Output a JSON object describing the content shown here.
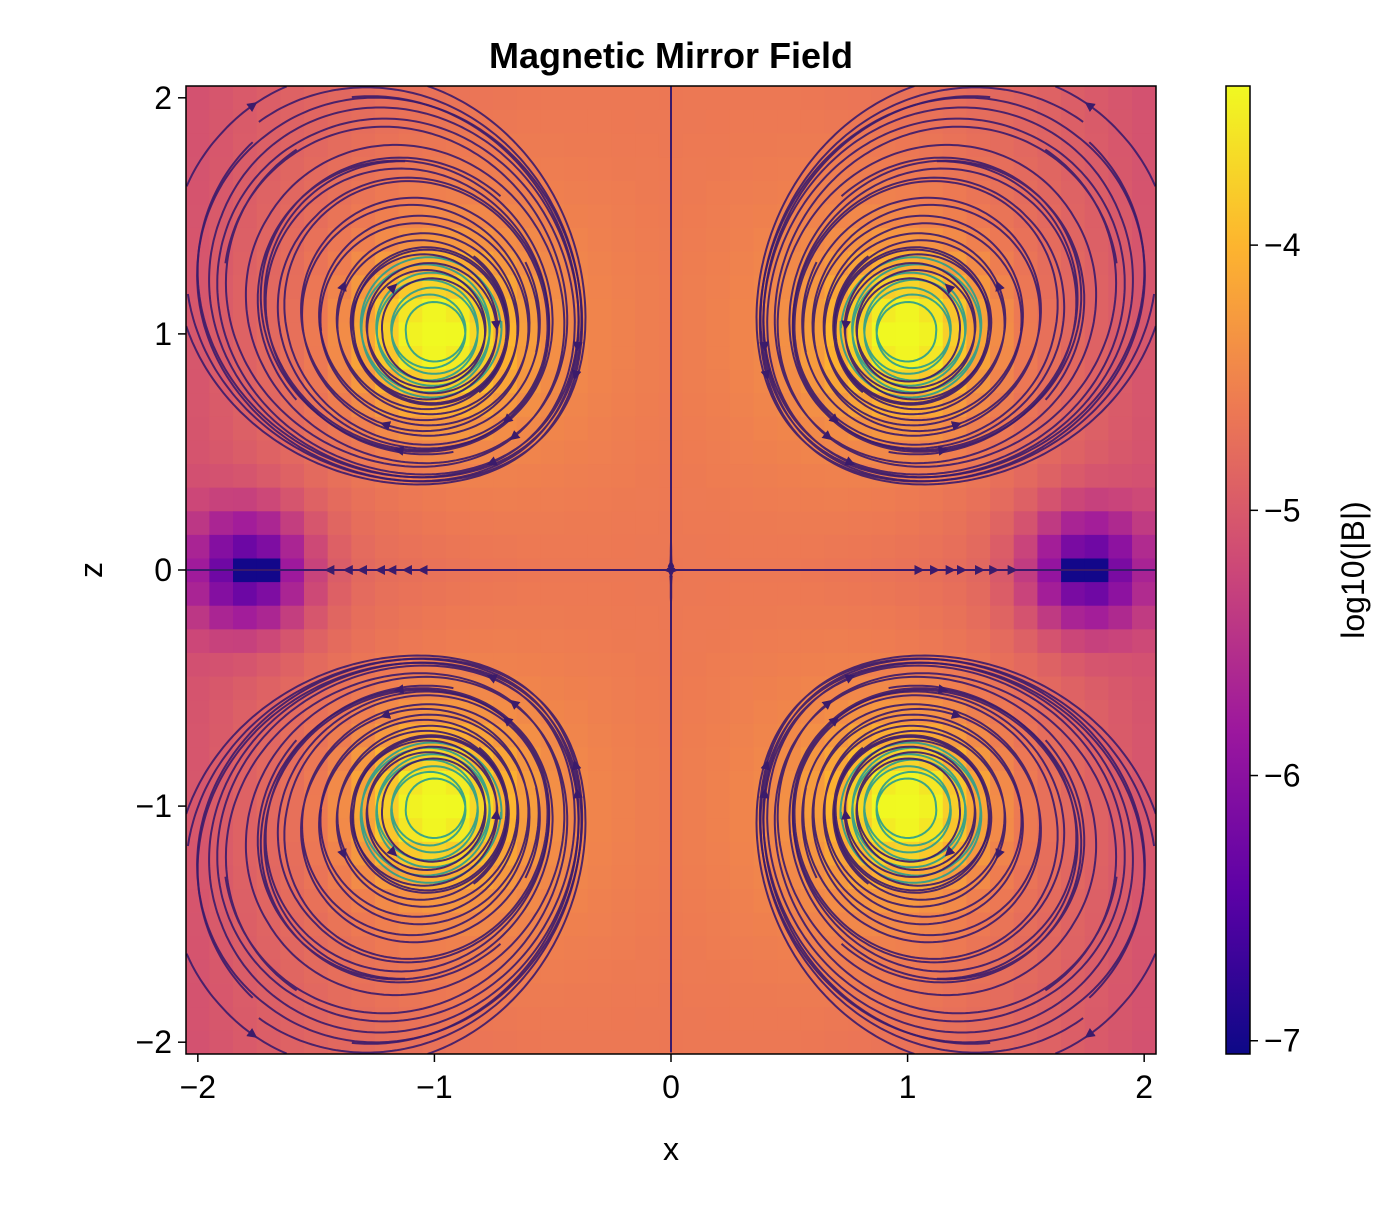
{
  "chart_data": {
    "type": "heatmap",
    "title": "Magnetic Mirror Field",
    "xlabel": "x",
    "ylabel": "z",
    "colorbar_label": "log10(|B|)",
    "xlim": [
      -2.05,
      2.05
    ],
    "ylim": [
      -2.05,
      2.05
    ],
    "xticks": [
      -2,
      -1,
      0,
      1,
      2
    ],
    "xtick_labels": [
      "−2",
      "−1",
      "0",
      "1",
      "2"
    ],
    "yticks": [
      -2,
      -1,
      0,
      1,
      2
    ],
    "ytick_labels": [
      "−2",
      "−1",
      "0",
      "1",
      "2"
    ],
    "colorbar_range": [
      -7.05,
      -3.4
    ],
    "colorbar_ticks": [
      -7,
      -6,
      -5,
      -4
    ],
    "colorbar_tick_labels": [
      "−7",
      "−6",
      "−5",
      "−4"
    ],
    "colormap": "plasma",
    "grid": false,
    "overlay": "streamlines",
    "coil_positions": [
      [
        -1,
        1
      ],
      [
        1,
        1
      ],
      [
        -1,
        -1
      ],
      [
        1,
        -1
      ]
    ],
    "null_points": [
      [
        -1.78,
        0
      ],
      [
        1.76,
        0
      ]
    ],
    "colors": {
      "streamline_dark": "#3b1b6b",
      "streamline_near_coil": "#2a9d8f",
      "colormap_stops": [
        "#0d0887",
        "#5c01a6",
        "#9c179e",
        "#cc4778",
        "#ed7953",
        "#fdb42f",
        "#f0f921"
      ]
    }
  }
}
